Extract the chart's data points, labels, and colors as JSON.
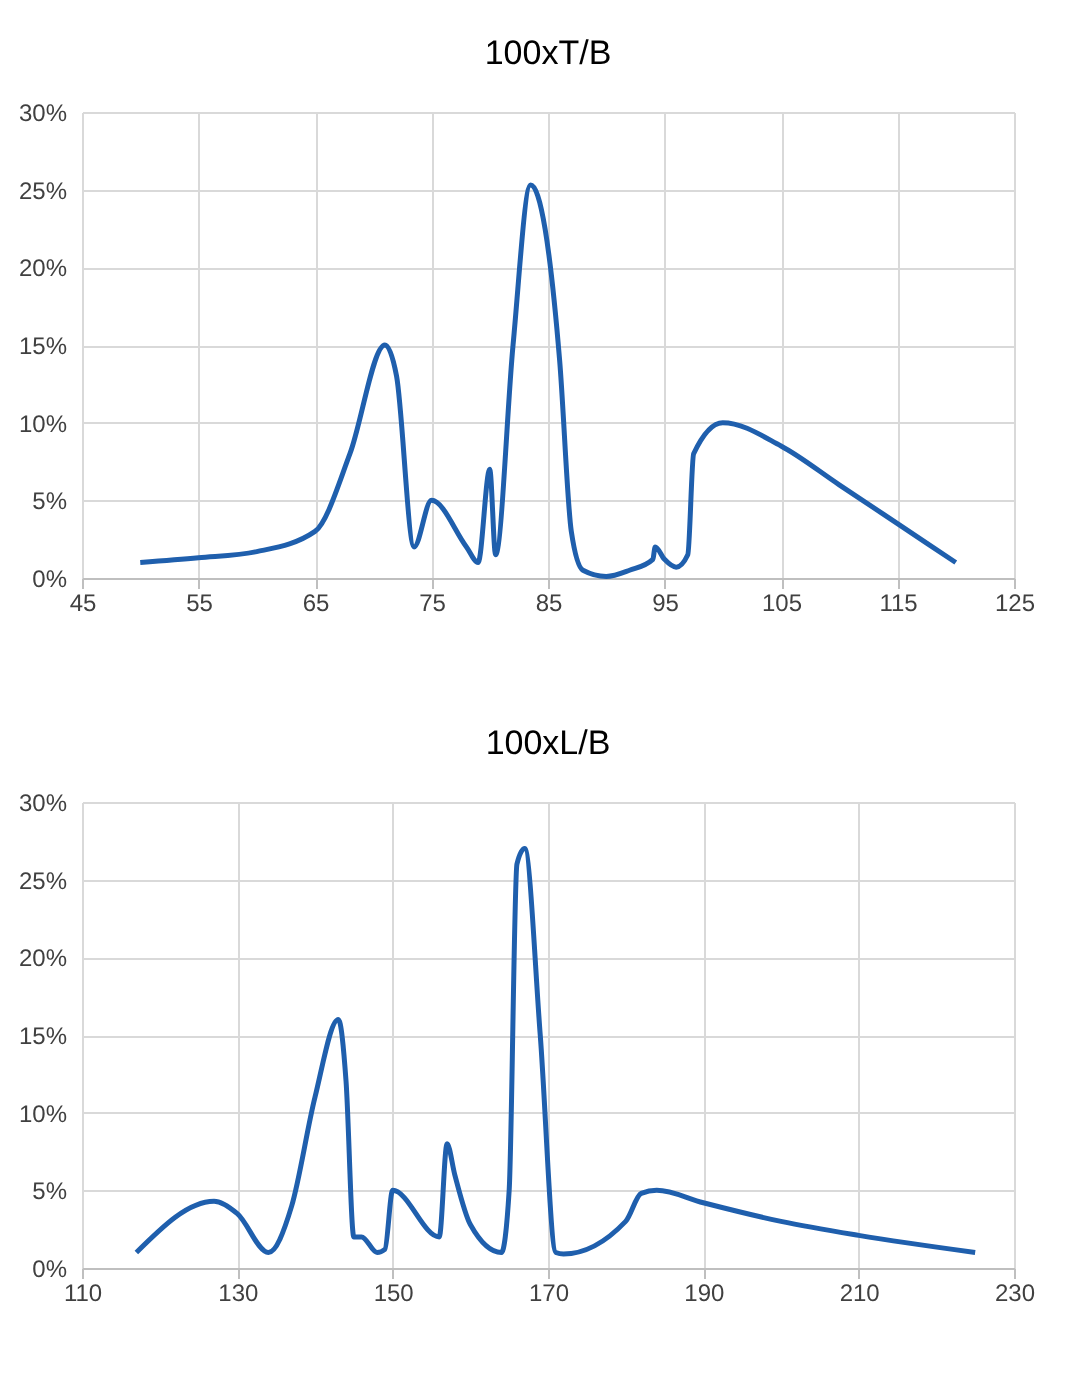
{
  "chart_data": [
    {
      "type": "line",
      "title": "100xT/B",
      "x": [
        50,
        55,
        60,
        65,
        68,
        71,
        72,
        73.5,
        75,
        78,
        79,
        80,
        80.5,
        82,
        83.5,
        86,
        87,
        88,
        90,
        92,
        94,
        94.2,
        95,
        96,
        97,
        97.5,
        100,
        105,
        110,
        115,
        120
      ],
      "series": [
        {
          "color": "#1f5fad",
          "values": [
            1,
            1.3,
            1.7,
            3,
            8,
            15,
            13,
            2,
            5,
            2,
            1,
            7,
            1.5,
            15,
            25.3,
            14,
            3,
            0.5,
            0.1,
            0.5,
            1.2,
            2,
            1.2,
            0.7,
            1.5,
            8,
            10,
            8.5,
            6,
            3.5,
            1
          ]
        }
      ],
      "xlim": [
        45,
        125
      ],
      "xticks": [
        45,
        55,
        65,
        75,
        85,
        95,
        105,
        115,
        125
      ],
      "ylim": [
        0,
        30
      ],
      "yticks": [
        {
          "value": 0,
          "label": "0%"
        },
        {
          "value": 5,
          "label": "5%"
        },
        {
          "value": 10,
          "label": "10%"
        },
        {
          "value": 15,
          "label": "15%"
        },
        {
          "value": 20,
          "label": "20%"
        },
        {
          "value": 25,
          "label": "25%"
        },
        {
          "value": 30,
          "label": "30%"
        }
      ],
      "grid": true,
      "marker": "none",
      "line_style": "solid"
    },
    {
      "type": "line",
      "title": "100xL/B",
      "x": [
        117,
        127,
        130,
        134,
        137,
        140,
        143,
        144,
        145,
        146,
        148,
        149,
        150,
        156,
        157,
        158,
        160,
        164,
        165,
        166,
        167,
        169,
        171,
        172,
        180,
        182,
        184,
        190,
        200,
        210,
        225
      ],
      "series": [
        {
          "color": "#1f5fad",
          "values": [
            1,
            4.3,
            3.5,
            1,
            4,
            11,
            16,
            12,
            2,
            2,
            1,
            1.2,
            5,
            2,
            8,
            6,
            2.8,
            1,
            5,
            26,
            27,
            15,
            1,
            0.9,
            3,
            4.8,
            5,
            4.2,
            3,
            2.1,
            1
          ]
        }
      ],
      "xlim": [
        110,
        230
      ],
      "xticks": [
        110,
        130,
        150,
        170,
        190,
        210,
        230
      ],
      "ylim": [
        0,
        30
      ],
      "yticks": [
        {
          "value": 0,
          "label": "0%"
        },
        {
          "value": 5,
          "label": "5%"
        },
        {
          "value": 10,
          "label": "10%"
        },
        {
          "value": 15,
          "label": "15%"
        },
        {
          "value": 20,
          "label": "20%"
        },
        {
          "value": 25,
          "label": "25%"
        },
        {
          "value": 30,
          "label": "30%"
        }
      ],
      "grid": true,
      "marker": "none",
      "line_style": "solid"
    }
  ]
}
